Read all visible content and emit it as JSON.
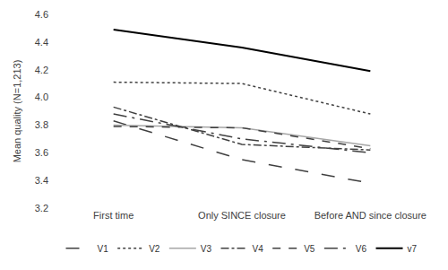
{
  "chart_data": {
    "type": "line",
    "y_label": "Mean quality (N=1,213)",
    "categories": [
      "First time",
      "Only SINCE closure",
      "Before AND since closure"
    ],
    "series": [
      {
        "name": "V1",
        "color": "#404040",
        "line_style": "longdash",
        "values": [
          3.83,
          3.55,
          3.38
        ]
      },
      {
        "name": "V2",
        "color": "#404040",
        "line_style": "dot",
        "values": [
          4.11,
          4.1,
          3.88
        ]
      },
      {
        "name": "V3",
        "color": "#a6a6a6",
        "line_style": "solid",
        "values": [
          3.8,
          3.78,
          3.65
        ]
      },
      {
        "name": "V4",
        "color": "#404040",
        "line_style": "dashdot",
        "values": [
          3.93,
          3.66,
          3.62
        ]
      },
      {
        "name": "V5",
        "color": "#404040",
        "line_style": "dash",
        "values": [
          3.79,
          3.78,
          3.63
        ]
      },
      {
        "name": "V6",
        "color": "#404040",
        "line_style": "longdashdot",
        "values": [
          3.88,
          3.7,
          3.6
        ]
      },
      {
        "name": "v7",
        "color": "#000000",
        "line_style": "solid",
        "values": [
          4.49,
          4.36,
          4.19
        ]
      }
    ],
    "ylim": [
      3.2,
      4.6
    ],
    "yticks": [
      3.2,
      3.4,
      3.6,
      3.8,
      {
        "value": 4,
        "label": "4.0"
      },
      4.2,
      4.4,
      4.6
    ],
    "grid": false,
    "legend": "bottom"
  }
}
